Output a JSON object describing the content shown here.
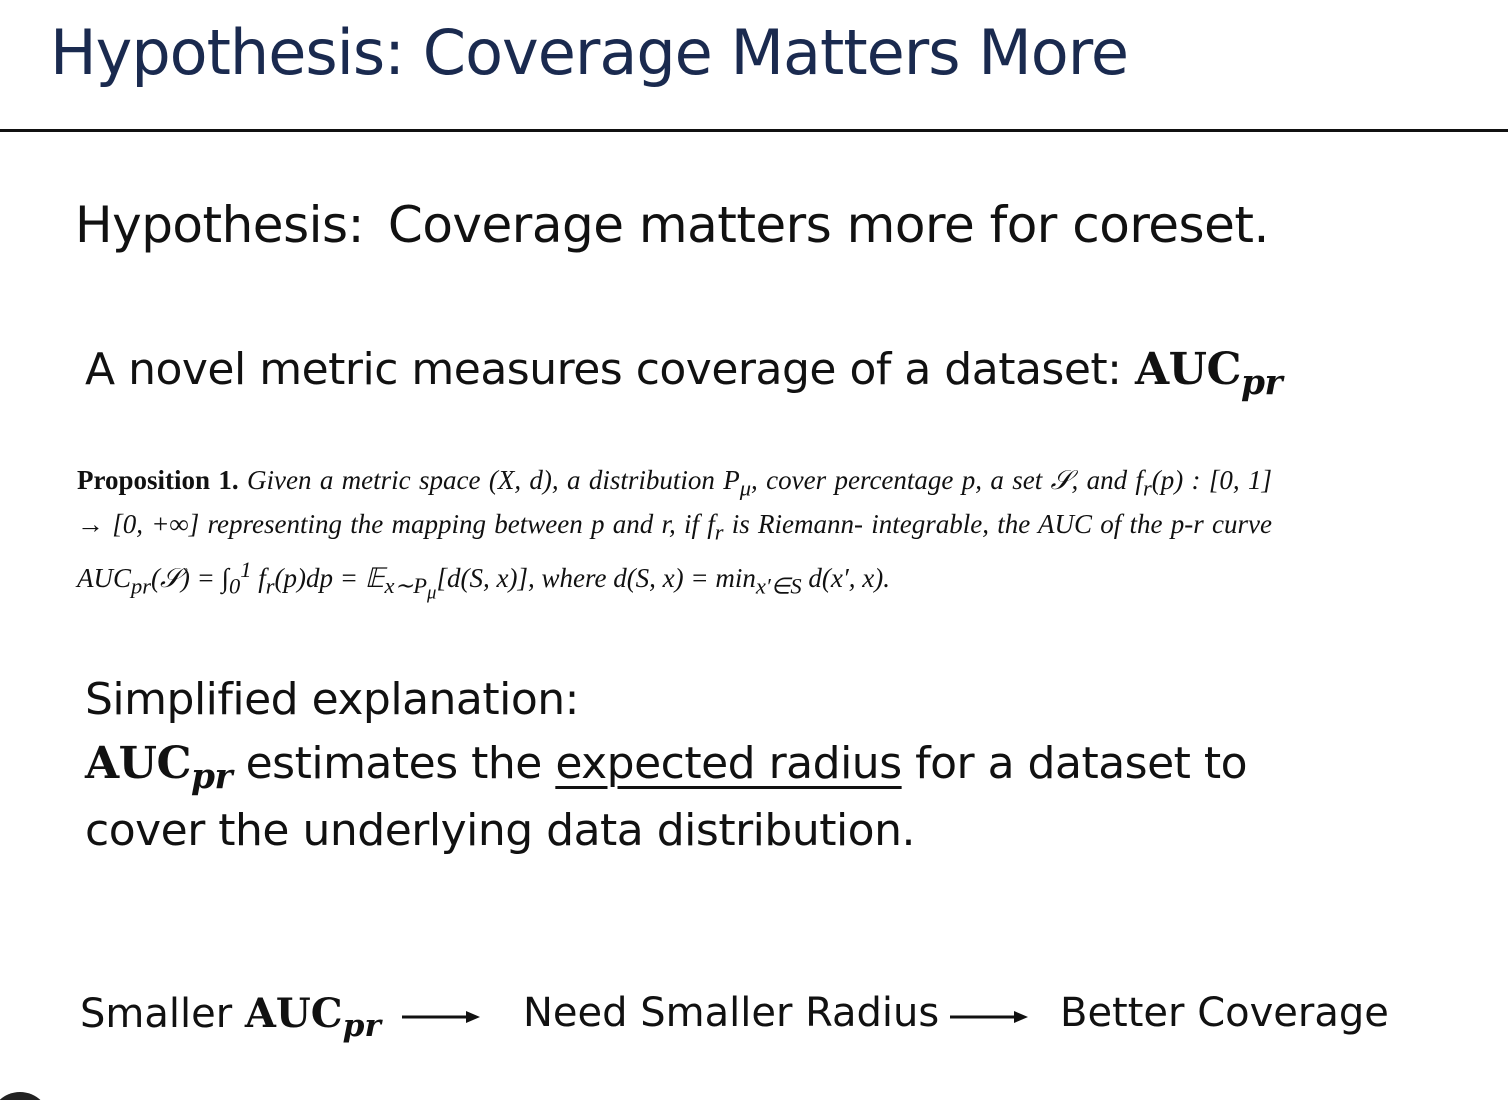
{
  "slide": {
    "title": "Hypothesis: Coverage Matters More"
  },
  "hypothesis": {
    "label": "Hypothesis:",
    "text": "Coverage matters more for coreset."
  },
  "metric": {
    "text": "A novel metric measures coverage of a dataset:",
    "auc_main": "AUC",
    "auc_sub": "pr"
  },
  "proposition": {
    "label": "Proposition 1.",
    "line1": "Given a metric space (X, d), a distribution P",
    "line1_sub": "μ",
    "line1b": ", cover percentage p, a set 𝒮,",
    "line2": "and f",
    "line2_sub": "r",
    "line2b": "(p) : [0, 1] → [0, +∞] representing the mapping between p and r, if f",
    "line2_sub2": "r",
    "line2c": " is Riemann-",
    "line3": "integrable, the AUC of the p-r curve AUC",
    "line3_sub": "pr",
    "line3b": "(𝒮) = ∫",
    "line3_lim_lo": "0",
    "line3_lim_hi": "1",
    "line3c": " f",
    "line3_sub2": "r",
    "line3d": "(p)dp = 𝔼",
    "line3_sub3": "x∼P",
    "line3_sub3b": "μ",
    "line3e": "[d(S, x)], where",
    "line4": "d(S, x) = min",
    "line4_sub": "x′∈S",
    "line4b": " d(x′, x)."
  },
  "simplified": {
    "heading": "Simplified explanation:",
    "auc_main": "AUC",
    "auc_sub": "pr",
    "text_before": " estimates the ",
    "underlined": "expected radius",
    "text_after": " for a dataset to",
    "line3": "cover the underlying data distribution."
  },
  "flow": {
    "step1_prefix": "Smaller ",
    "step1_auc_main": "AUC",
    "step1_auc_sub": "pr",
    "step2": "Need Smaller Radius",
    "step3": "Better Coverage"
  }
}
